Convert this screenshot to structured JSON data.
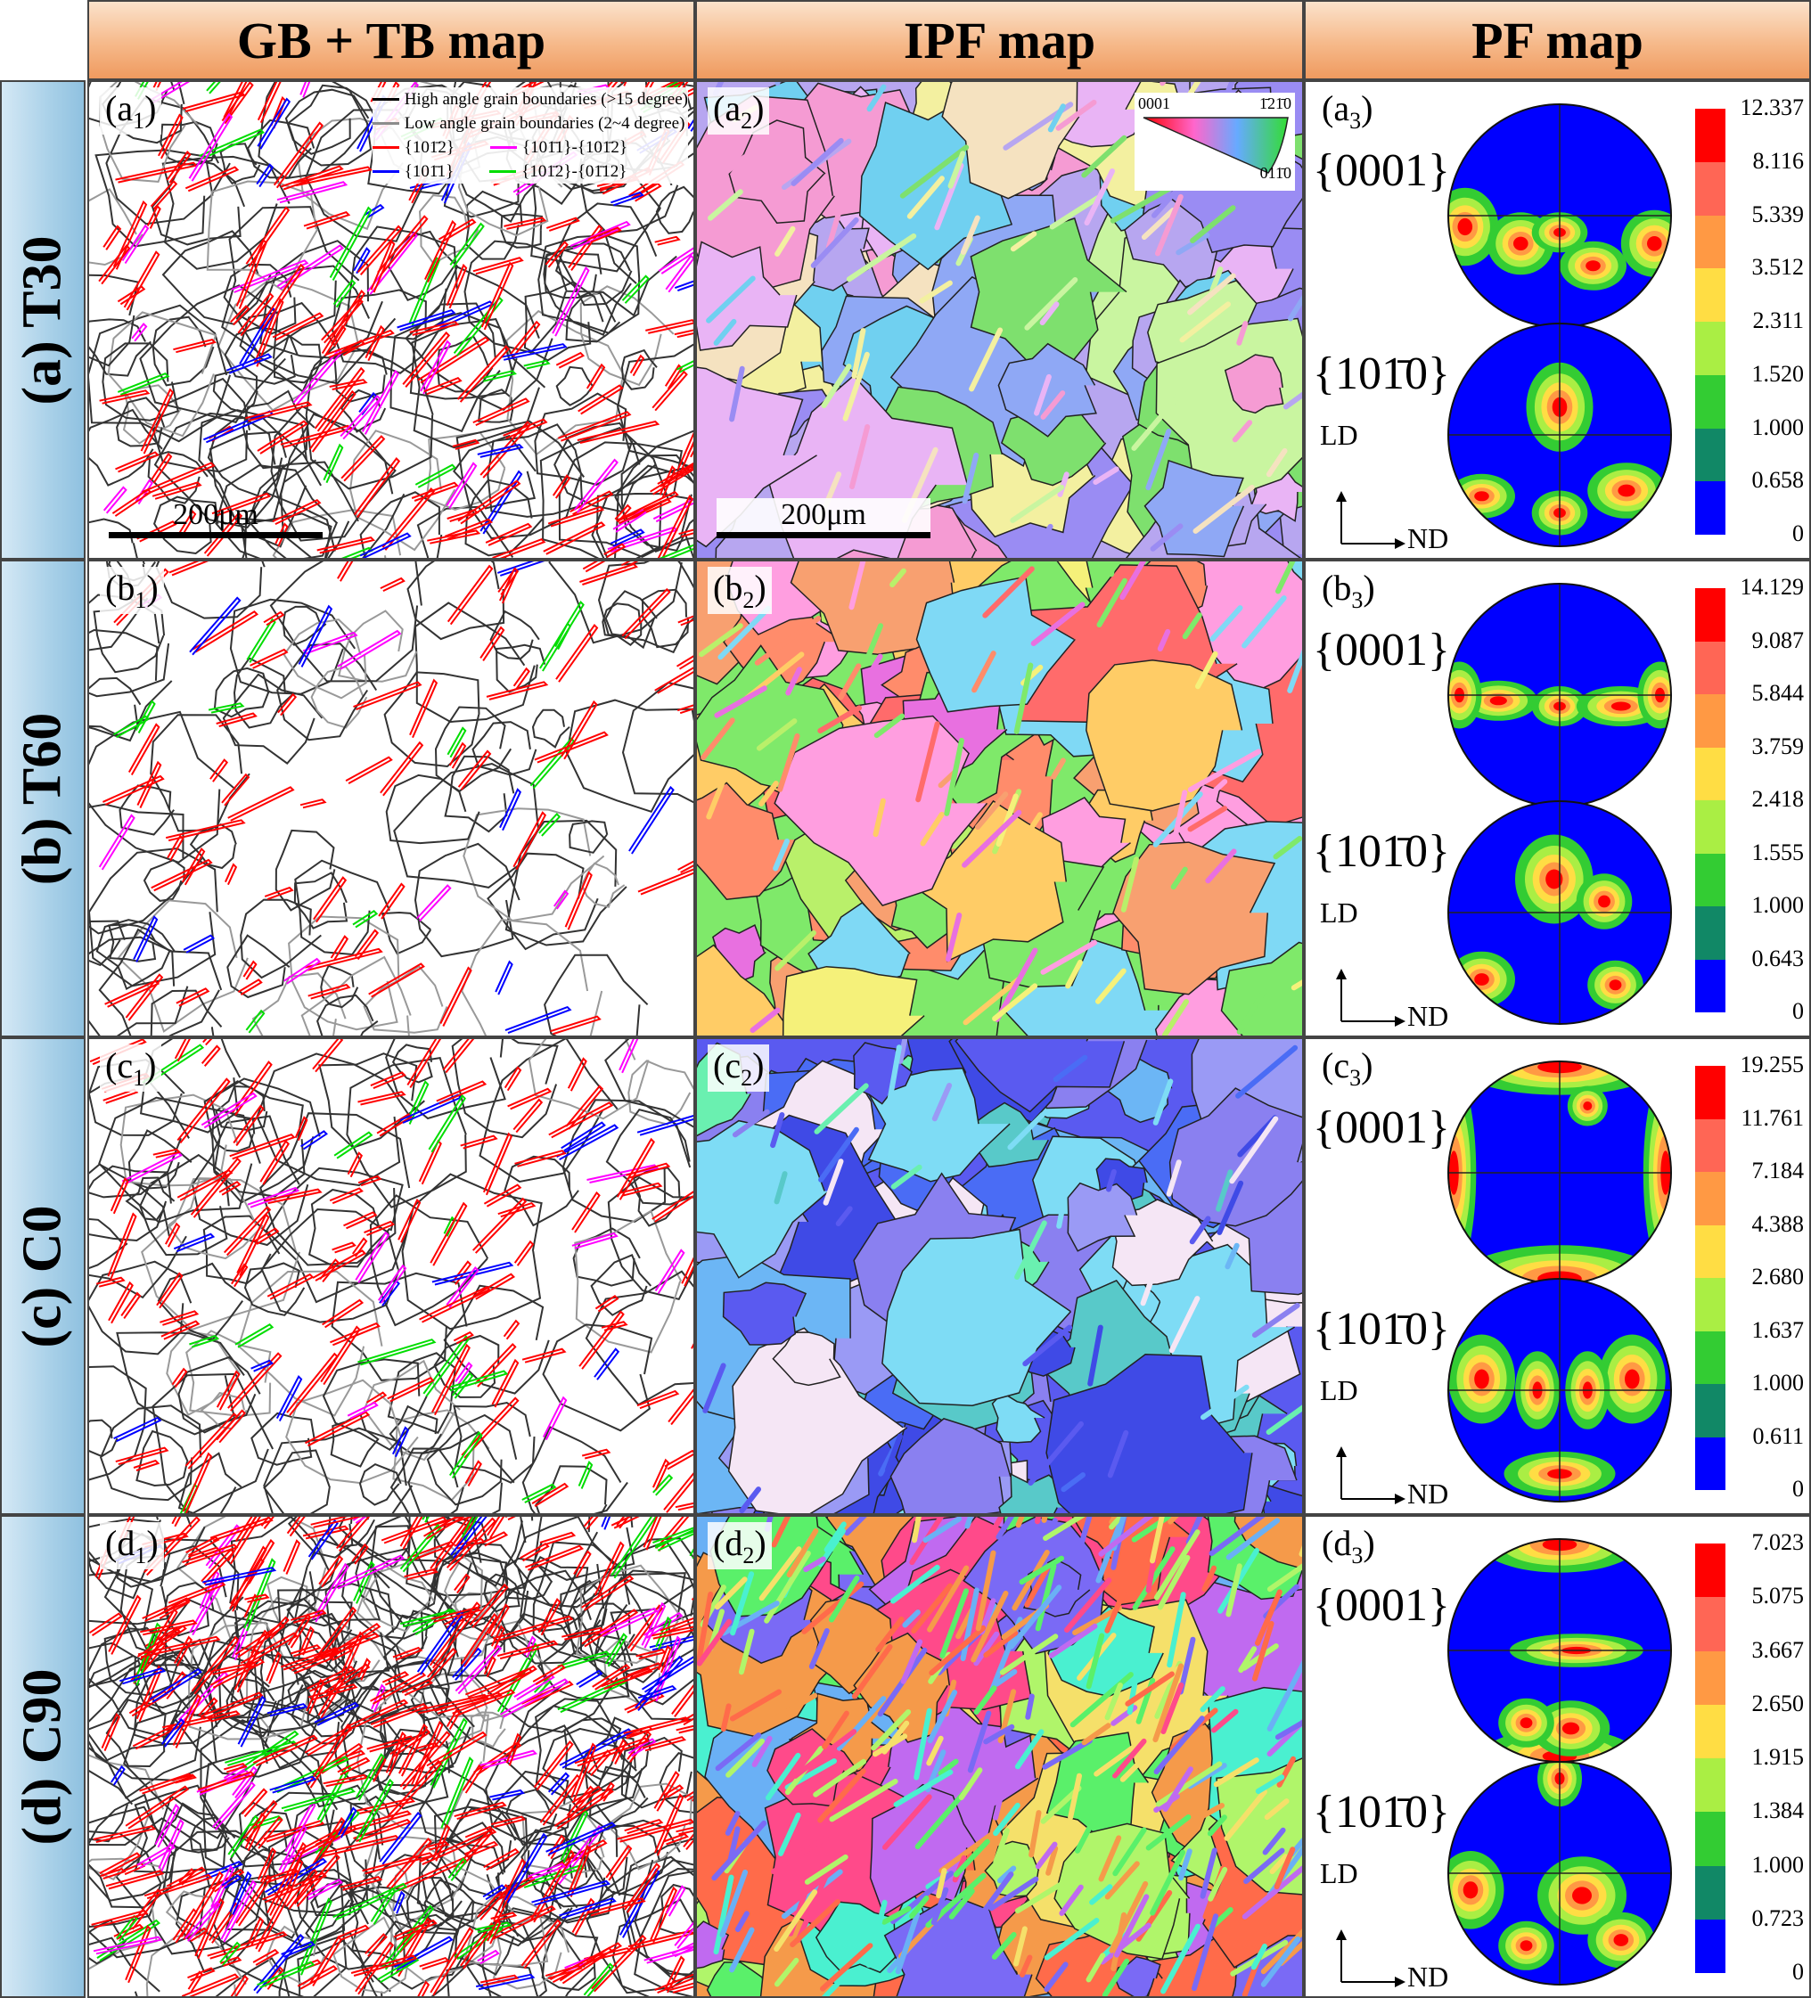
{
  "headers": {
    "col1": "GB + TB map",
    "col2": "IPF map",
    "col3": "PF map"
  },
  "rows": [
    {
      "label": "(a) T30",
      "p1": "a",
      "p2": "a",
      "p3": "a"
    },
    {
      "label": "(b) T60",
      "p1": "b",
      "p2": "b",
      "p3": "b"
    },
    {
      "label": "(c) C0",
      "p1": "c",
      "p2": "c",
      "p3": "c"
    },
    {
      "label": "(d) C90",
      "p1": "d",
      "p2": "d",
      "p3": "d"
    }
  ],
  "panel_subscripts": [
    "1",
    "2",
    "3"
  ],
  "legend": {
    "hagb": "High angle grain boundaries (>15 degree)",
    "lagb": "Low angle grain boundaries (2~4 degree)",
    "t1": "{101̄2}",
    "t2": "{101̄1}-{101̄2}",
    "t3": "{101̄1}",
    "t4": "{101̄2}-{01̄12}",
    "colors": {
      "hagb": "#000000",
      "lagb": "#8c8c8c",
      "t1": "#ff0000",
      "t2": "#ff00ff",
      "t3": "#0000ff",
      "t4": "#00dd00"
    }
  },
  "scale_bar": "200μm",
  "ipf_key": {
    "c0": "0001",
    "c1": "1̄21̄0",
    "c2": "011̄0"
  },
  "pf_labels": {
    "basal": "{0001}",
    "prism": "{101̄0}",
    "ld": "LD",
    "nd": "ND"
  },
  "colorbar_colors": [
    "#ff0000",
    "#ff6655",
    "#ff9944",
    "#ffdd44",
    "#aaee44",
    "#33cc33",
    "#118866",
    "#0000ff"
  ],
  "colorbars": [
    [
      "12.337",
      "8.116",
      "5.339",
      "3.512",
      "2.311",
      "1.520",
      "1.000",
      "0.658",
      "0"
    ],
    [
      "14.129",
      "9.087",
      "5.844",
      "3.759",
      "2.418",
      "1.555",
      "1.000",
      "0.643",
      "0"
    ],
    [
      "19.255",
      "11.761",
      "7.184",
      "4.388",
      "2.680",
      "1.637",
      "1.000",
      "0.611",
      "0"
    ],
    [
      "7.023",
      "5.075",
      "3.667",
      "2.650",
      "1.915",
      "1.384",
      "1.000",
      "0.723",
      "0"
    ]
  ]
}
